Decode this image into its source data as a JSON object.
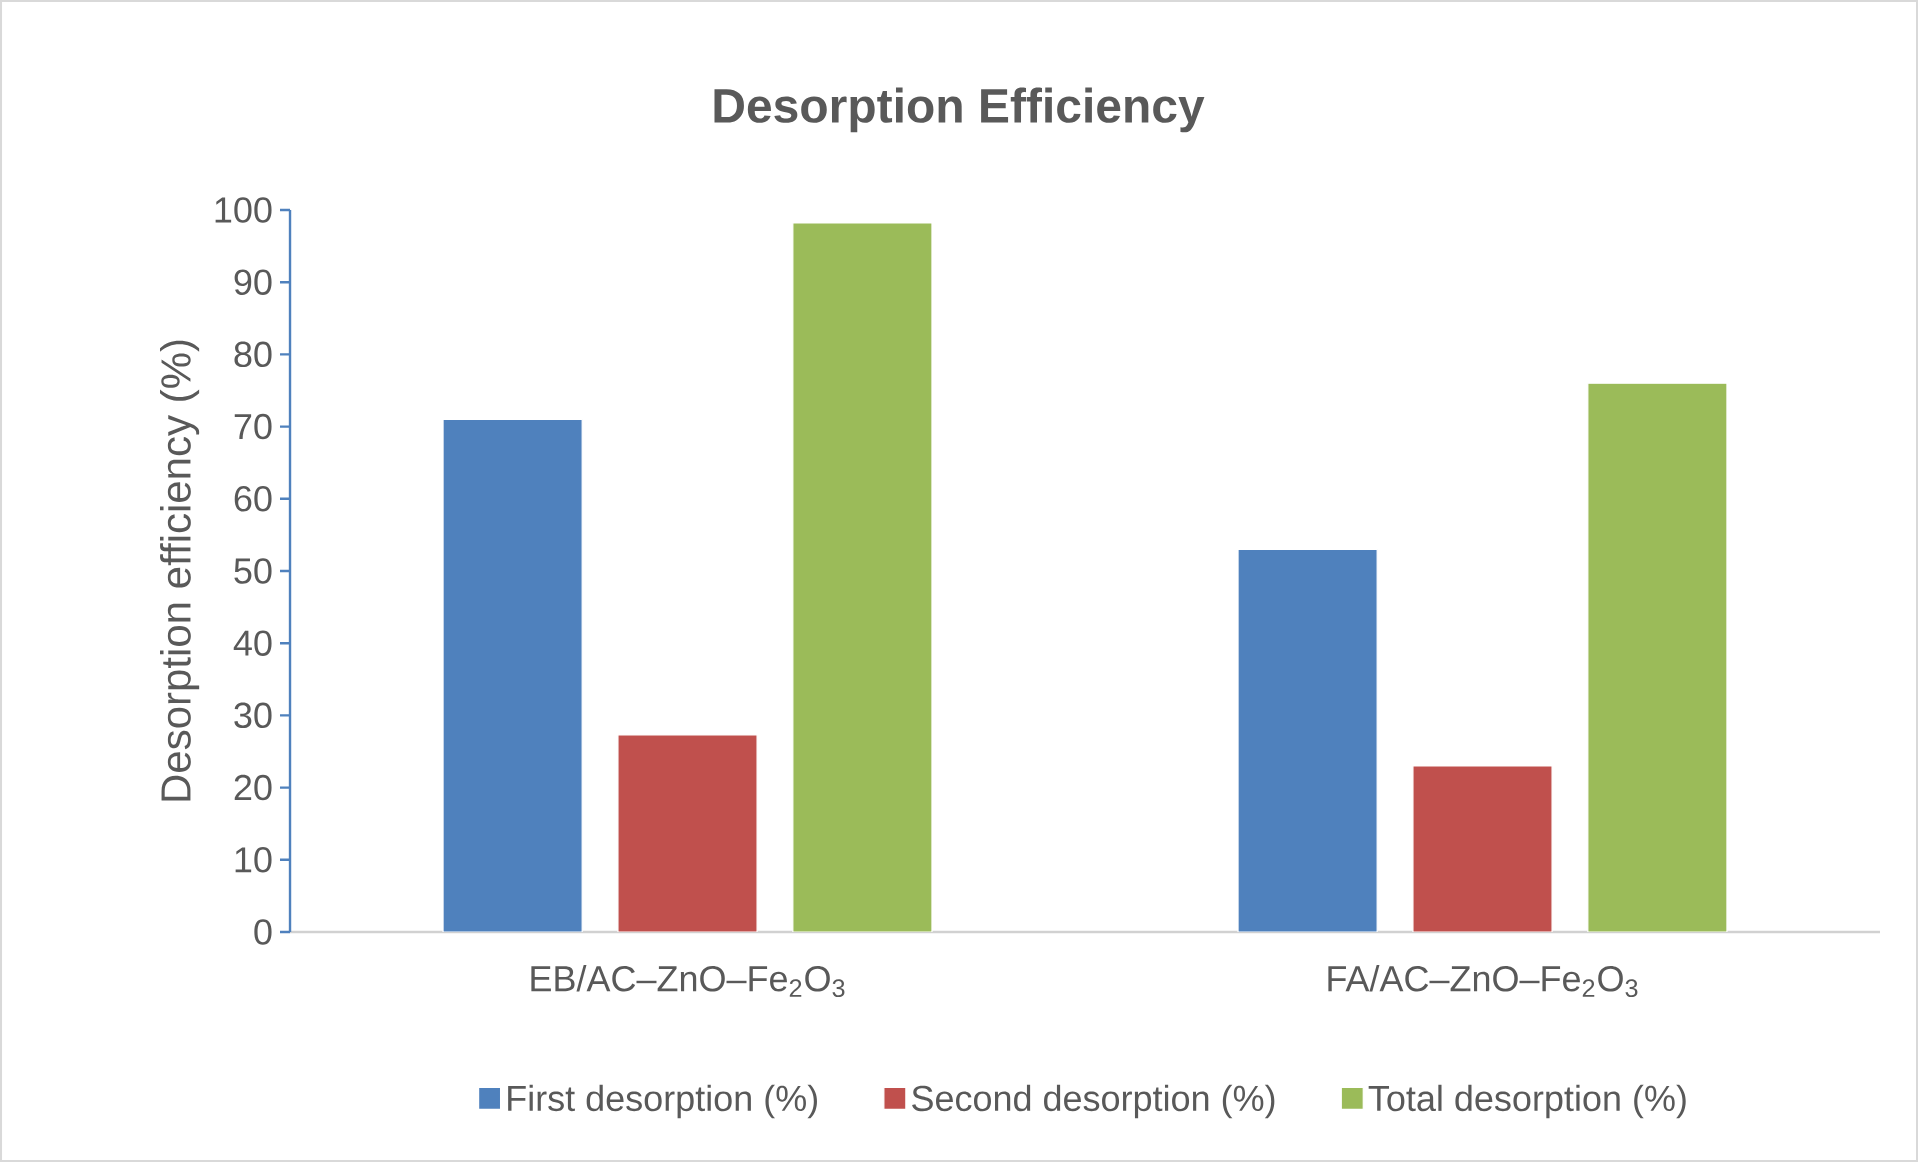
{
  "chart_data": {
    "type": "bar",
    "title": "Desorption Efficiency",
    "ylabel": "Desorption efficiency (%)",
    "categories": [
      "EB/AC–ZnO–Fe$_{2}$O$_{3}$",
      "FA/AC–ZnO–Fe$_{2}$O$_{3}$"
    ],
    "series": [
      {
        "name": "First desorption (%)",
        "color": "#4f81bd",
        "values": [
          71,
          53
        ]
      },
      {
        "name": "Second desorption (%)",
        "color": "#c0504d",
        "values": [
          27.3,
          23
        ]
      },
      {
        "name": "Total desorption (%)",
        "color": "#9bbb59",
        "values": [
          98.2,
          76
        ]
      }
    ],
    "ylim": [
      0,
      100
    ],
    "yticks": [
      0,
      10,
      20,
      30,
      40,
      50,
      60,
      70,
      80,
      90,
      100
    ],
    "legend": "bottom"
  }
}
